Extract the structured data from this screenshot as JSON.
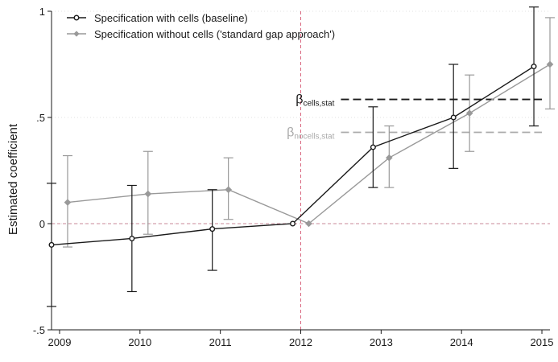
{
  "chart_data": {
    "type": "line",
    "ylabel": "Estimated coefficient",
    "xlabel": "",
    "x": [
      2009,
      2010,
      2011,
      2012,
      2013,
      2014,
      2015
    ],
    "xlim": [
      2008.9,
      2015.1
    ],
    "ylim": [
      -0.5,
      1
    ],
    "yticks": [
      {
        "value": -0.5,
        "label": "-.5"
      },
      {
        "value": 0,
        "label": "0"
      },
      {
        "value": 0.5,
        "label": ".5"
      },
      {
        "value": 1,
        "label": "1"
      }
    ],
    "xticks": [
      {
        "value": 2009,
        "label": "2009"
      },
      {
        "value": 2010,
        "label": "2010"
      },
      {
        "value": 2011,
        "label": "2011"
      },
      {
        "value": 2012,
        "label": "2012"
      },
      {
        "value": 2013,
        "label": "2013"
      },
      {
        "value": 2014,
        "label": "2014"
      },
      {
        "value": 2015,
        "label": "2015"
      }
    ],
    "legend_position": "top-left",
    "series": [
      {
        "name": "Specification with cells (baseline)",
        "color": "#1a1a1a",
        "marker": "circle",
        "x_offset": -0.1,
        "values": [
          -0.1,
          -0.07,
          -0.025,
          0.0,
          0.36,
          0.5,
          0.74
        ],
        "ci_low": [
          -0.39,
          -0.32,
          -0.22,
          0.0,
          0.17,
          0.26,
          0.46
        ],
        "ci_high": [
          0.19,
          0.18,
          0.16,
          0.0,
          0.55,
          0.75,
          1.02
        ]
      },
      {
        "name": "Specification without cells ('standard gap approach')",
        "color": "#999999",
        "marker": "diamond",
        "x_offset": 0.1,
        "values": [
          0.1,
          0.14,
          0.16,
          0.0,
          0.31,
          0.52,
          0.75
        ],
        "ci_low": [
          -0.11,
          -0.05,
          0.02,
          0.0,
          0.17,
          0.34,
          0.54
        ],
        "ci_high": [
          0.32,
          0.34,
          0.31,
          0.0,
          0.46,
          0.7,
          0.97
        ]
      }
    ],
    "reference_lines": [
      {
        "axis": "y",
        "value": 0,
        "color": "#c9899a",
        "style": "dashed"
      },
      {
        "axis": "x",
        "value": 2012,
        "color": "#d9667f",
        "style": "dashed"
      }
    ],
    "annotations": [
      {
        "main": "β",
        "sub": "cells,stat",
        "y_value": 0.585,
        "x_start": 2012.5,
        "x_end": 2015.0,
        "color": "#1a1a1a"
      },
      {
        "main": "β",
        "sub": "nocells,stat",
        "y_value": 0.43,
        "x_start": 2012.5,
        "x_end": 2015.0,
        "color": "#aaaaaa"
      }
    ]
  }
}
